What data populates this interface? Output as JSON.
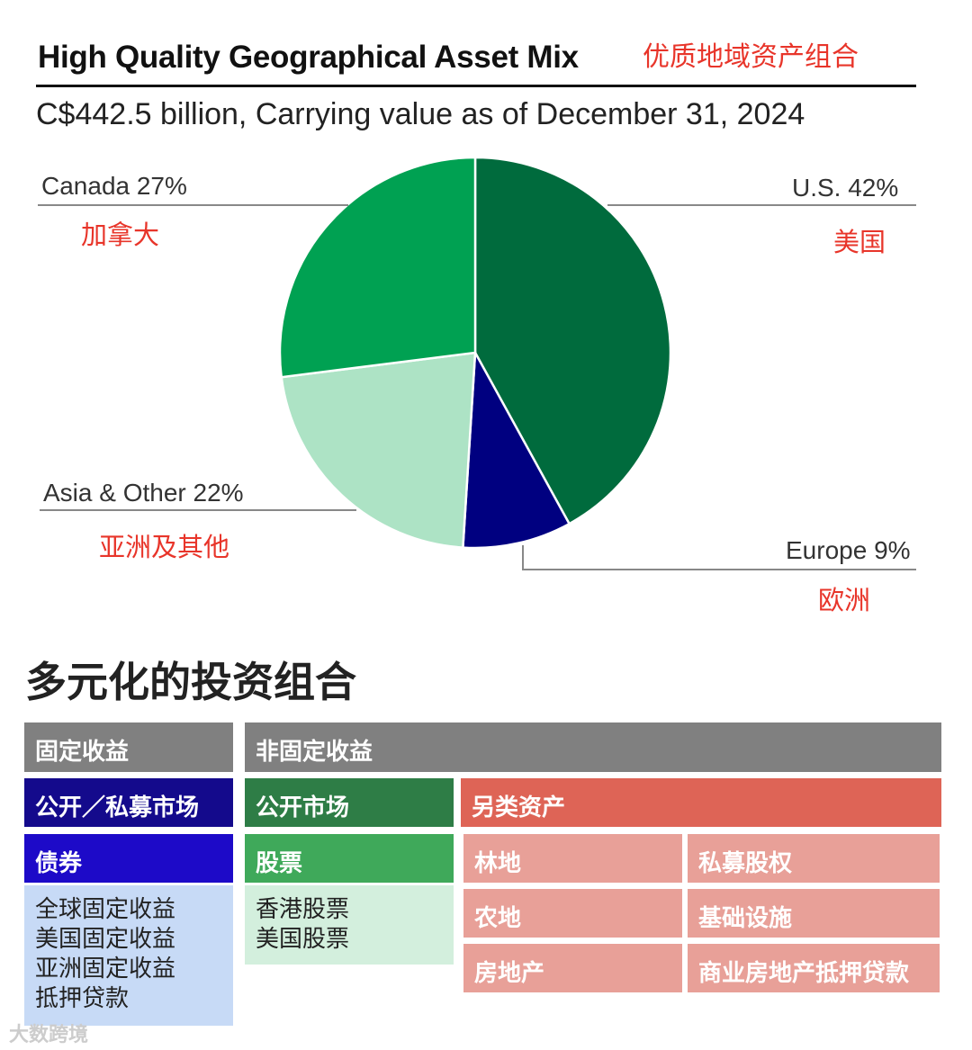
{
  "header": {
    "title": "High Quality Geographical Asset Mix",
    "title_cn": "优质地域资产组合",
    "subtitle": "C$442.5 billion, Carrying value as of December 31, 2024"
  },
  "chart_data": {
    "type": "pie",
    "title": "High Quality Geographical Asset Mix",
    "subtitle": "C$442.5 billion, Carrying value as of December 31, 2024",
    "slices": [
      {
        "label": "U.S.  42%",
        "label_cn": "美国",
        "name": "U.S.",
        "value": 42,
        "color": "#006b3d"
      },
      {
        "label": "Europe 9%",
        "label_cn": "欧洲",
        "name": "Europe",
        "value": 9,
        "color": "#000080"
      },
      {
        "label": "Asia & Other 22%",
        "label_cn": "亚洲及其他",
        "name": "Asia & Other",
        "value": 22,
        "color": "#ade3c5"
      },
      {
        "label": "Canada 27%",
        "label_cn": "加拿大",
        "name": "Canada",
        "value": 27,
        "color": "#00a152"
      }
    ]
  },
  "portfolio": {
    "title": "多元化的投资组合",
    "fixed_income": "固定收益",
    "non_fixed_income": "非固定收益",
    "public_private": "公开／私募市场",
    "bonds": "债券",
    "bond_items": [
      "全球固定收益",
      "美国固定收益",
      "亚洲固定收益",
      "抵押贷款"
    ],
    "public_markets": "公开市场",
    "equities": "股票",
    "equity_items": [
      "香港股票",
      "美国股票"
    ],
    "alternatives": "另类资产",
    "alt_items": [
      "林地",
      "私募股权",
      "农地",
      "基础设施",
      "房地产",
      "商业房地产抵押贷款"
    ]
  },
  "watermark": "大数跨境"
}
